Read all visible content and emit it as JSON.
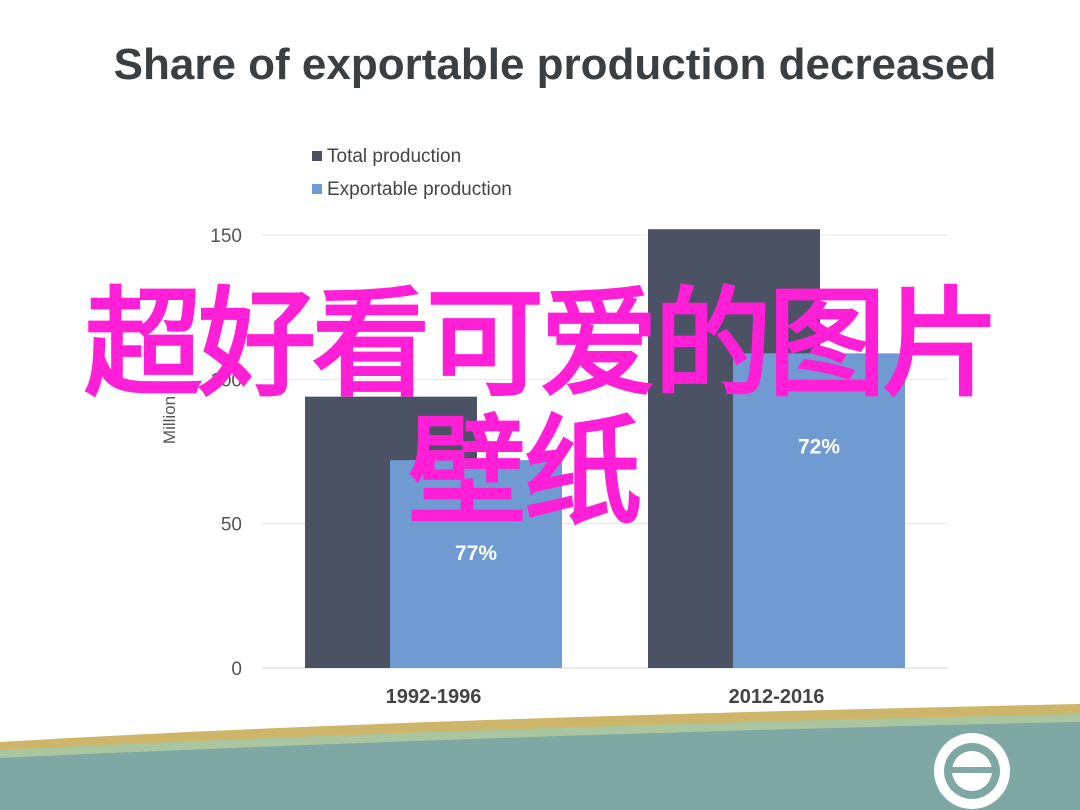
{
  "slide": {
    "title": "Share of exportable production decreased"
  },
  "watermark": {
    "line1": "超好看可爱的图片",
    "line2": "壁纸"
  },
  "colors": {
    "total": "#4a5263",
    "exportable": "#6f9ad2",
    "gridline": "#e6e6e6",
    "axis_text": "#555555",
    "footer_teal": "#7fa7a4",
    "footer_gold": "#cdb66a",
    "footer_green": "#a9c6a0"
  },
  "chart_data": {
    "type": "bar",
    "title": "",
    "xlabel": "",
    "ylabel": "Million",
    "ylim": [
      0,
      150
    ],
    "yticks": [
      0,
      50,
      100,
      150
    ],
    "grid": true,
    "legend_position": "top-left",
    "categories": [
      "1992-1996",
      "2012-2016"
    ],
    "series": [
      {
        "name": "Total production",
        "values": [
          94,
          152
        ]
      },
      {
        "name": "Exportable production",
        "values": [
          72,
          109
        ]
      }
    ],
    "data_labels": [
      {
        "series": "Exportable production",
        "category": "1992-1996",
        "text": "77%"
      },
      {
        "series": "Exportable production",
        "category": "2012-2016",
        "text": "72%"
      }
    ]
  }
}
